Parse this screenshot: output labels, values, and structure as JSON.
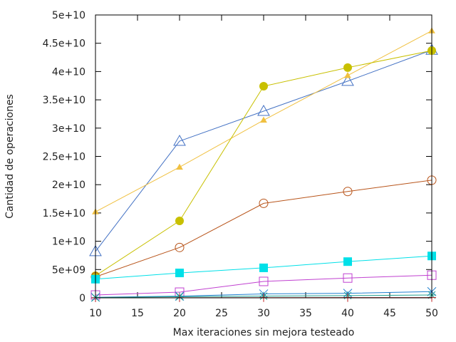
{
  "chart_data": {
    "type": "line",
    "title": "",
    "xlabel": "Max iteraciones sin mejora testeado",
    "ylabel": "Cantidad de operaciones",
    "xlim": [
      10,
      50
    ],
    "ylim": [
      0,
      50000000000
    ],
    "grid": false,
    "x_ticks": [
      {
        "value": 10,
        "label": "10"
      },
      {
        "value": 15,
        "label": "15"
      },
      {
        "value": 20,
        "label": "20"
      },
      {
        "value": 25,
        "label": "25"
      },
      {
        "value": 30,
        "label": "30"
      },
      {
        "value": 35,
        "label": "35"
      },
      {
        "value": 40,
        "label": "40"
      },
      {
        "value": 45,
        "label": "45"
      },
      {
        "value": 50,
        "label": "50"
      }
    ],
    "y_ticks": [
      {
        "value": 0,
        "label": "0"
      },
      {
        "value": 5000000000,
        "label": "5e+09"
      },
      {
        "value": 10000000000,
        "label": "1e+10"
      },
      {
        "value": 15000000000,
        "label": "1.5e+10"
      },
      {
        "value": 20000000000,
        "label": "2e+10"
      },
      {
        "value": 25000000000,
        "label": "2.5e+10"
      },
      {
        "value": 30000000000,
        "label": "3e+10"
      },
      {
        "value": 35000000000,
        "label": "3.5e+10"
      },
      {
        "value": 40000000000,
        "label": "4e+10"
      },
      {
        "value": 45000000000,
        "label": "4.5e+10"
      },
      {
        "value": 50000000000,
        "label": "5e+10"
      }
    ],
    "x": [
      10,
      20,
      30,
      40,
      50
    ],
    "series": [
      {
        "color": "#4472c4",
        "marker": "triangle-open",
        "values": [
          8200000000,
          27700000000,
          33000000000,
          38300000000,
          43800000000
        ]
      },
      {
        "color": "#f0c040",
        "marker": "triangle-filled",
        "values": [
          15200000000,
          23100000000,
          31400000000,
          39300000000,
          47200000000
        ]
      },
      {
        "color": "#c8c000",
        "marker": "circle-filled",
        "values": [
          3900000000,
          13600000000,
          37400000000,
          40700000000,
          43700000000
        ]
      },
      {
        "color": "#b8541a",
        "marker": "circle-open",
        "values": [
          3700000000,
          8900000000,
          16700000000,
          18800000000,
          20800000000
        ]
      },
      {
        "color": "#00e0e8",
        "marker": "square-filled",
        "values": [
          3300000000,
          4400000000,
          5300000000,
          6400000000,
          7400000000
        ]
      },
      {
        "color": "#c040d0",
        "marker": "square-open",
        "values": [
          500000000,
          1000000000,
          2900000000,
          3500000000,
          4000000000
        ]
      },
      {
        "color": "#2080d0",
        "marker": "x",
        "values": [
          100000000,
          300000000,
          700000000,
          800000000,
          1100000000
        ]
      },
      {
        "color": "#20a090",
        "marker": "star",
        "values": [
          50000000,
          200000000,
          300000000,
          400000000,
          500000000
        ]
      },
      {
        "color": "#c02020",
        "marker": "plus",
        "values": [
          0,
          20000000,
          30000000,
          40000000,
          50000000
        ]
      }
    ]
  }
}
